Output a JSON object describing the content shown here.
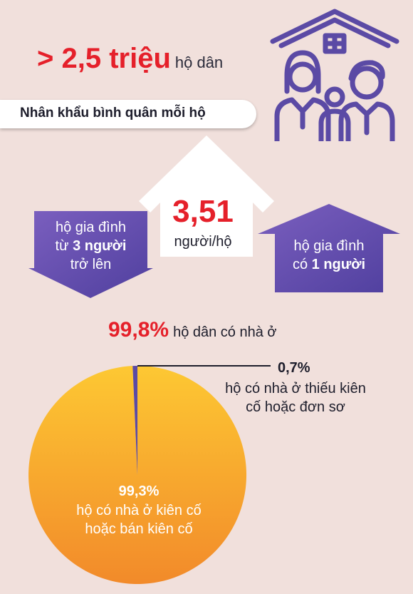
{
  "headline": {
    "value": "> 2,5 triệu",
    "unit": "hộ dân"
  },
  "banner": {
    "label": "Nhân khẩu bình quân mỗi hộ"
  },
  "average": {
    "value": "3,51",
    "unit": "người/hộ"
  },
  "arrows": {
    "down": {
      "line1": "hộ gia đình",
      "line2_prefix": "từ ",
      "line2_bold": "3 người",
      "line3": "trở lên"
    },
    "up": {
      "line1": "hộ gia đình",
      "line2_prefix": "có ",
      "line2_bold": "1 người"
    }
  },
  "housing": {
    "pct": "99,8%",
    "label": "hộ dân có nhà ở"
  },
  "chart_data": {
    "type": "pie",
    "slices": [
      {
        "pct_text": "99,3%",
        "label_line1": "hộ có nhà ở kiên cố",
        "label_line2": "hoặc bán kiên cố",
        "value": 99.3,
        "color": "#f9a42f"
      },
      {
        "pct_text": "0,7%",
        "label_line1": "hộ có nhà ở thiếu kiên",
        "label_line2": "cố hoặc đơn sơ",
        "value": 0.7,
        "color": "#5b4aa5"
      }
    ]
  },
  "colors": {
    "accent_red": "#e5202a",
    "purple": "#5b4aa5",
    "background": "#f1e0dc"
  },
  "icons": {
    "family": "family-house-icon",
    "house": "house-outline-icon"
  }
}
